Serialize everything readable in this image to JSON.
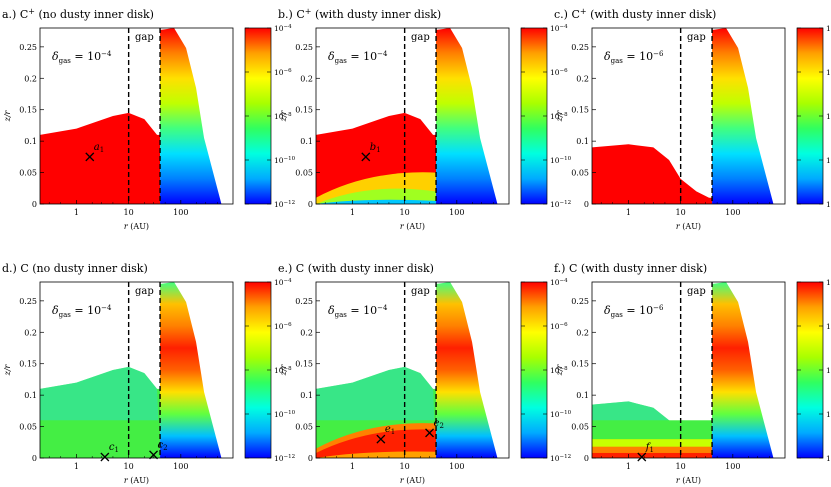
{
  "figure": {
    "xlabel_sym": "r",
    "xlabel_unit": " (AU)",
    "ylabel": "z/r",
    "gap_label": "gap",
    "delta_sym": "δ",
    "delta_sub": "gas",
    "delta_eq": " = ",
    "cbar_ticks": [
      {
        "base": "10",
        "exp": "−4",
        "value": -4
      },
      {
        "base": "10",
        "exp": "−6",
        "value": -6
      },
      {
        "base": "10",
        "exp": "−8",
        "value": -8
      },
      {
        "base": "10",
        "exp": "−10",
        "value": -10
      },
      {
        "base": "10",
        "exp": "−12",
        "value": -12
      }
    ],
    "x_ticks": [
      {
        "label": "1",
        "value": 1
      },
      {
        "label": "10",
        "value": 10
      },
      {
        "label": "100",
        "value": 100
      }
    ],
    "y_ticks": [
      "0",
      "0.05",
      "0.1",
      "0.15",
      "0.2",
      "0.25"
    ],
    "palette": [
      "#0000ff",
      "#00aaff",
      "#00ffe0",
      "#30ff60",
      "#a8ff00",
      "#ffff00",
      "#ffa000",
      "#ff0000"
    ]
  },
  "chart_data": [
    {
      "type": "heatmap",
      "title_prefix": "a.) C",
      "title_sup": "+",
      "title_suffix": " (no dusty inner disk)",
      "delta_base": "10",
      "delta_exp": "−4",
      "x_scale": "log",
      "xlim": [
        0.2,
        1000
      ],
      "ylim": [
        0,
        0.28
      ],
      "colorbar_range_log10": [
        -12,
        -4
      ],
      "gap_au": [
        10,
        40
      ],
      "marker": {
        "label": "a",
        "sub": "1",
        "r": 1.8,
        "z": 0.075
      },
      "inner_disk": {
        "top": [
          [
            0.2,
            0.11
          ],
          [
            1,
            0.12
          ],
          [
            5,
            0.14
          ],
          [
            10,
            0.145
          ],
          [
            20,
            0.135
          ],
          [
            35,
            0.11
          ]
        ],
        "fill": "red"
      },
      "outer_disk_peak_z": 0.28
    },
    {
      "type": "heatmap",
      "title_prefix": "b.) C",
      "title_sup": "+",
      "title_suffix": " (with dusty inner disk)",
      "delta_base": "10",
      "delta_exp": "−4",
      "x_scale": "log",
      "xlim": [
        0.2,
        1000
      ],
      "ylim": [
        0,
        0.28
      ],
      "colorbar_range_log10": [
        -12,
        -4
      ],
      "gap_au": [
        10,
        40
      ],
      "marker": {
        "label": "b",
        "sub": "1",
        "r": 1.8,
        "z": 0.075
      },
      "inner_disk": {
        "top": [
          [
            0.2,
            0.11
          ],
          [
            1,
            0.12
          ],
          [
            5,
            0.14
          ],
          [
            10,
            0.145
          ],
          [
            20,
            0.135
          ],
          [
            35,
            0.11
          ]
        ],
        "fill": "red_with_dusty_midplane"
      },
      "outer_disk_peak_z": 0.28
    },
    {
      "type": "heatmap",
      "title_prefix": "c.) C",
      "title_sup": "+",
      "title_suffix": " (with dusty inner disk)",
      "delta_base": "10",
      "delta_exp": "−6",
      "x_scale": "log",
      "xlim": [
        0.2,
        1000
      ],
      "ylim": [
        0,
        0.28
      ],
      "colorbar_range_log10": [
        -12,
        -4
      ],
      "gap_au": [
        10,
        40
      ],
      "marker": null,
      "inner_disk": {
        "top": [
          [
            0.2,
            0.09
          ],
          [
            1,
            0.095
          ],
          [
            3,
            0.09
          ],
          [
            6,
            0.07
          ],
          [
            10,
            0.04
          ],
          [
            20,
            0.02
          ],
          [
            35,
            0.01
          ]
        ],
        "fill": "red"
      },
      "outer_disk_peak_z": 0.28
    },
    {
      "type": "heatmap",
      "title_prefix": "d.) C",
      "title_sup": "",
      "title_suffix": " (no dusty inner disk)",
      "delta_base": "10",
      "delta_exp": "−4",
      "x_scale": "log",
      "xlim": [
        0.2,
        1000
      ],
      "ylim": [
        0,
        0.28
      ],
      "colorbar_range_log10": [
        -12,
        -4
      ],
      "gap_au": [
        10,
        40
      ],
      "markers": [
        {
          "label": "c",
          "sub": "1",
          "r": 3.5,
          "z": 0.0
        },
        {
          "label": "c",
          "sub": "2",
          "r": 30,
          "z": 0.005
        }
      ],
      "inner_disk": {
        "top": [
          [
            0.2,
            0.11
          ],
          [
            1,
            0.12
          ],
          [
            5,
            0.14
          ],
          [
            10,
            0.145
          ],
          [
            20,
            0.135
          ],
          [
            35,
            0.11
          ]
        ],
        "fill": "green"
      },
      "outer_disk_peak_z": 0.28
    },
    {
      "type": "heatmap",
      "title_prefix": "e.) C",
      "title_sup": "",
      "title_suffix": " (with dusty inner disk)",
      "delta_base": "10",
      "delta_exp": "−4",
      "x_scale": "log",
      "xlim": [
        0.2,
        1000
      ],
      "ylim": [
        0,
        0.28
      ],
      "colorbar_range_log10": [
        -12,
        -4
      ],
      "gap_au": [
        10,
        40
      ],
      "markers": [
        {
          "label": "e",
          "sub": "1",
          "r": 3.5,
          "z": 0.03
        },
        {
          "label": "e",
          "sub": "2",
          "r": 30,
          "z": 0.04
        }
      ],
      "inner_disk": {
        "top": [
          [
            0.2,
            0.11
          ],
          [
            1,
            0.12
          ],
          [
            5,
            0.14
          ],
          [
            10,
            0.145
          ],
          [
            20,
            0.135
          ],
          [
            35,
            0.11
          ]
        ],
        "fill": "green_with_red_midplane"
      },
      "outer_disk_peak_z": 0.28
    },
    {
      "type": "heatmap",
      "title_prefix": "f.) C",
      "title_sup": "",
      "title_suffix": " (with dusty inner disk)",
      "delta_base": "10",
      "delta_exp": "−6",
      "x_scale": "log",
      "xlim": [
        0.2,
        1000
      ],
      "ylim": [
        0,
        0.28
      ],
      "colorbar_range_log10": [
        -12,
        -4
      ],
      "gap_au": [
        10,
        40
      ],
      "markers": [
        {
          "label": "f",
          "sub": "1",
          "r": 1.8,
          "z": 0.0
        }
      ],
      "inner_disk": {
        "top": [
          [
            0.2,
            0.085
          ],
          [
            1,
            0.09
          ],
          [
            3,
            0.08
          ],
          [
            6,
            0.06
          ],
          [
            10,
            0.04
          ],
          [
            20,
            0.025
          ],
          [
            35,
            0.015
          ]
        ],
        "fill": "green_with_red_midplane_low"
      },
      "outer_disk_peak_z": 0.28
    }
  ]
}
